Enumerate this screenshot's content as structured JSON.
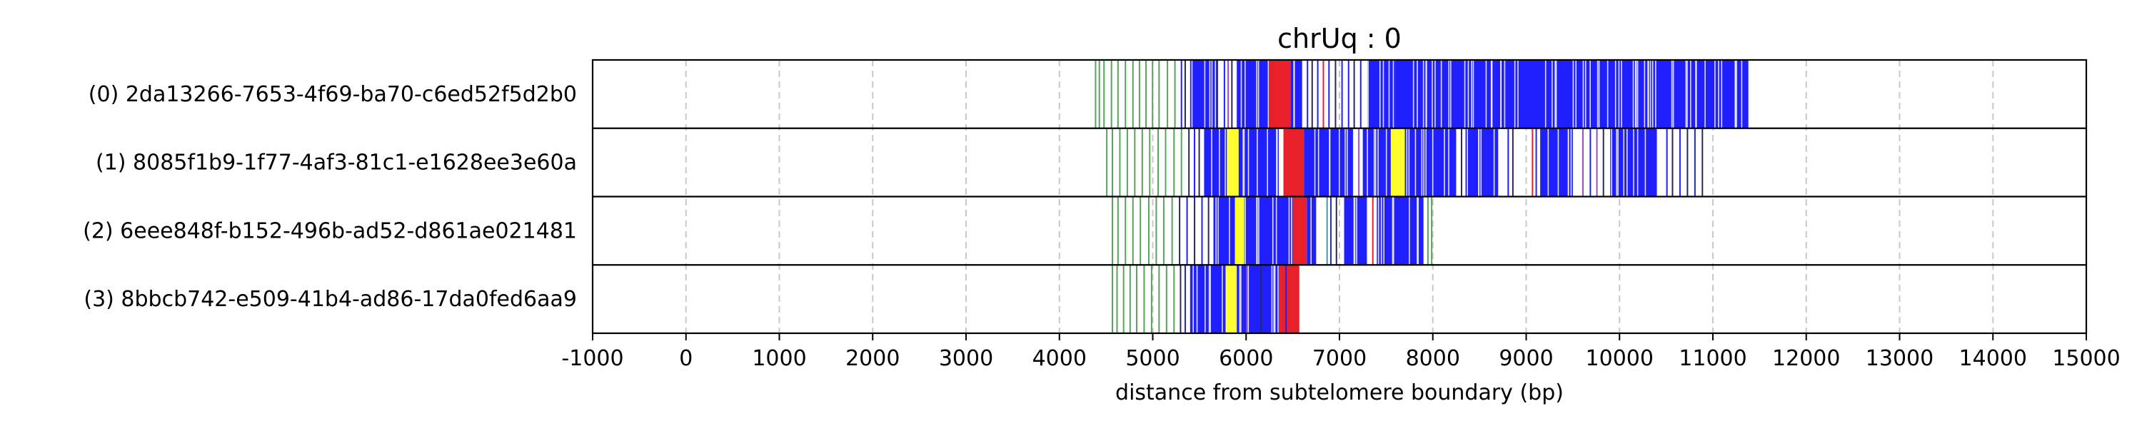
{
  "chart_data": {
    "type": "barcode-track",
    "title": "chrUq : 0",
    "xlabel": "distance from subtelomere boundary (bp)",
    "ylabel": "",
    "xlim": [
      -1000,
      15000
    ],
    "x_ticks": [
      -1000,
      0,
      1000,
      2000,
      3000,
      4000,
      5000,
      6000,
      7000,
      8000,
      9000,
      10000,
      11000,
      12000,
      13000,
      14000,
      15000
    ],
    "grid": "x dashed",
    "colors": {
      "green": "#5aa35a",
      "blue": "#1f1fff",
      "red": "#e8202a",
      "yellow": "#ffff30",
      "purple": "#9b4fb5",
      "dark": "#2a2a55",
      "teal": "#3a9ab0"
    },
    "rows": [
      {
        "label": "(0) 2da13266-7653-4f69-ba70-c6ed52f5d2b0",
        "end": 11380,
        "bands": [
          {
            "start": 5400,
            "end": 5700,
            "color": "blue"
          },
          {
            "start": 5900,
            "end": 6250,
            "color": "blue"
          },
          {
            "start": 6250,
            "end": 6480,
            "color": "red"
          },
          {
            "start": 6480,
            "end": 6600,
            "color": "blue"
          },
          {
            "start": 7300,
            "end": 7600,
            "color": "blue"
          },
          {
            "start": 7600,
            "end": 11380,
            "color": "blue"
          }
        ],
        "marks": [
          {
            "x": 4380,
            "color": "green"
          },
          {
            "x": 4420,
            "color": "green"
          },
          {
            "x": 4470,
            "color": "green"
          },
          {
            "x": 4550,
            "color": "green"
          },
          {
            "x": 4620,
            "color": "green"
          },
          {
            "x": 4700,
            "color": "green"
          },
          {
            "x": 4780,
            "color": "green"
          },
          {
            "x": 4850,
            "color": "green"
          },
          {
            "x": 4920,
            "color": "green"
          },
          {
            "x": 4990,
            "color": "green"
          },
          {
            "x": 5060,
            "color": "green"
          },
          {
            "x": 5150,
            "color": "green"
          },
          {
            "x": 5230,
            "color": "green"
          },
          {
            "x": 5300,
            "color": "blue"
          },
          {
            "x": 5340,
            "color": "dark"
          },
          {
            "x": 5760,
            "color": "blue"
          },
          {
            "x": 5800,
            "color": "purple"
          },
          {
            "x": 5840,
            "color": "dark"
          },
          {
            "x": 6650,
            "color": "blue"
          },
          {
            "x": 6700,
            "color": "dark"
          },
          {
            "x": 6760,
            "color": "blue"
          },
          {
            "x": 6820,
            "color": "red"
          },
          {
            "x": 6880,
            "color": "blue"
          },
          {
            "x": 6950,
            "color": "dark"
          },
          {
            "x": 7020,
            "color": "blue"
          },
          {
            "x": 7090,
            "color": "blue"
          },
          {
            "x": 7150,
            "color": "dark"
          },
          {
            "x": 7220,
            "color": "blue"
          }
        ]
      },
      {
        "label": "(1) 8085f1b9-1f77-4af3-81c1-e1628ee3e60a",
        "end": 10900,
        "bands": [
          {
            "start": 5550,
            "end": 5800,
            "color": "blue"
          },
          {
            "start": 5800,
            "end": 5920,
            "color": "yellow"
          },
          {
            "start": 5920,
            "end": 6350,
            "color": "blue"
          },
          {
            "start": 6400,
            "end": 6620,
            "color": "red"
          },
          {
            "start": 6620,
            "end": 7150,
            "color": "blue"
          },
          {
            "start": 7250,
            "end": 7550,
            "color": "blue"
          },
          {
            "start": 7550,
            "end": 7700,
            "color": "yellow"
          },
          {
            "start": 7700,
            "end": 8250,
            "color": "blue"
          },
          {
            "start": 8350,
            "end": 8700,
            "color": "blue"
          },
          {
            "start": 9150,
            "end": 9500,
            "color": "blue"
          },
          {
            "start": 9900,
            "end": 10400,
            "color": "blue"
          }
        ],
        "marks": [
          {
            "x": 4500,
            "color": "green"
          },
          {
            "x": 4560,
            "color": "green"
          },
          {
            "x": 4640,
            "color": "green"
          },
          {
            "x": 4720,
            "color": "green"
          },
          {
            "x": 4800,
            "color": "green"
          },
          {
            "x": 4880,
            "color": "green"
          },
          {
            "x": 4960,
            "color": "green"
          },
          {
            "x": 5050,
            "color": "green"
          },
          {
            "x": 5130,
            "color": "green"
          },
          {
            "x": 5220,
            "color": "green"
          },
          {
            "x": 5300,
            "color": "green"
          },
          {
            "x": 5380,
            "color": "dark"
          },
          {
            "x": 5440,
            "color": "blue"
          },
          {
            "x": 5490,
            "color": "dark"
          },
          {
            "x": 7200,
            "color": "purple"
          },
          {
            "x": 8300,
            "color": "dark"
          },
          {
            "x": 8800,
            "color": "blue"
          },
          {
            "x": 8850,
            "color": "dark"
          },
          {
            "x": 9060,
            "color": "red"
          },
          {
            "x": 9100,
            "color": "blue"
          },
          {
            "x": 9600,
            "color": "purple"
          },
          {
            "x": 9680,
            "color": "blue"
          },
          {
            "x": 9750,
            "color": "purple"
          },
          {
            "x": 9820,
            "color": "dark"
          },
          {
            "x": 10500,
            "color": "blue"
          },
          {
            "x": 10560,
            "color": "dark"
          },
          {
            "x": 10640,
            "color": "blue"
          },
          {
            "x": 10720,
            "color": "dark"
          },
          {
            "x": 10800,
            "color": "blue"
          },
          {
            "x": 10880,
            "color": "dark"
          }
        ]
      },
      {
        "label": "(2) 6eee848f-b152-496b-ad52-d861ae021481",
        "end": 8000,
        "bands": [
          {
            "start": 5650,
            "end": 5880,
            "color": "blue"
          },
          {
            "start": 5880,
            "end": 5980,
            "color": "yellow"
          },
          {
            "start": 5980,
            "end": 6500,
            "color": "blue"
          },
          {
            "start": 6500,
            "end": 6650,
            "color": "red"
          },
          {
            "start": 6650,
            "end": 6750,
            "color": "blue"
          },
          {
            "start": 7050,
            "end": 7300,
            "color": "blue"
          },
          {
            "start": 7400,
            "end": 7900,
            "color": "blue"
          }
        ],
        "marks": [
          {
            "x": 4560,
            "color": "green"
          },
          {
            "x": 4620,
            "color": "green"
          },
          {
            "x": 4700,
            "color": "green"
          },
          {
            "x": 4780,
            "color": "green"
          },
          {
            "x": 4860,
            "color": "green"
          },
          {
            "x": 4950,
            "color": "green"
          },
          {
            "x": 5030,
            "color": "green"
          },
          {
            "x": 5110,
            "color": "green"
          },
          {
            "x": 5200,
            "color": "green"
          },
          {
            "x": 5280,
            "color": "dark"
          },
          {
            "x": 5360,
            "color": "blue"
          },
          {
            "x": 5440,
            "color": "dark"
          },
          {
            "x": 5520,
            "color": "blue"
          },
          {
            "x": 5590,
            "color": "dark"
          },
          {
            "x": 6860,
            "color": "teal"
          },
          {
            "x": 6900,
            "color": "blue"
          },
          {
            "x": 6960,
            "color": "dark"
          },
          {
            "x": 7350,
            "color": "red"
          },
          {
            "x": 7940,
            "color": "green"
          },
          {
            "x": 7980,
            "color": "green"
          }
        ]
      },
      {
        "label": "(3) 8bbcb742-e509-41b4-ad86-17da0fed6aa9",
        "end": 6570,
        "bands": [
          {
            "start": 5400,
            "end": 5780,
            "color": "blue"
          },
          {
            "start": 5780,
            "end": 5900,
            "color": "yellow"
          },
          {
            "start": 5900,
            "end": 6350,
            "color": "blue"
          },
          {
            "start": 6350,
            "end": 6570,
            "color": "red"
          }
        ],
        "marks": [
          {
            "x": 4560,
            "color": "green"
          },
          {
            "x": 4610,
            "color": "green"
          },
          {
            "x": 4680,
            "color": "green"
          },
          {
            "x": 4750,
            "color": "green"
          },
          {
            "x": 4820,
            "color": "green"
          },
          {
            "x": 4900,
            "color": "green"
          },
          {
            "x": 4980,
            "color": "green"
          },
          {
            "x": 5060,
            "color": "green"
          },
          {
            "x": 5140,
            "color": "green"
          },
          {
            "x": 5220,
            "color": "green"
          },
          {
            "x": 5290,
            "color": "dark"
          },
          {
            "x": 5340,
            "color": "blue"
          },
          {
            "x": 6000,
            "color": "purple"
          },
          {
            "x": 6150,
            "color": "dark"
          },
          {
            "x": 6420,
            "color": "blue"
          }
        ]
      }
    ]
  }
}
